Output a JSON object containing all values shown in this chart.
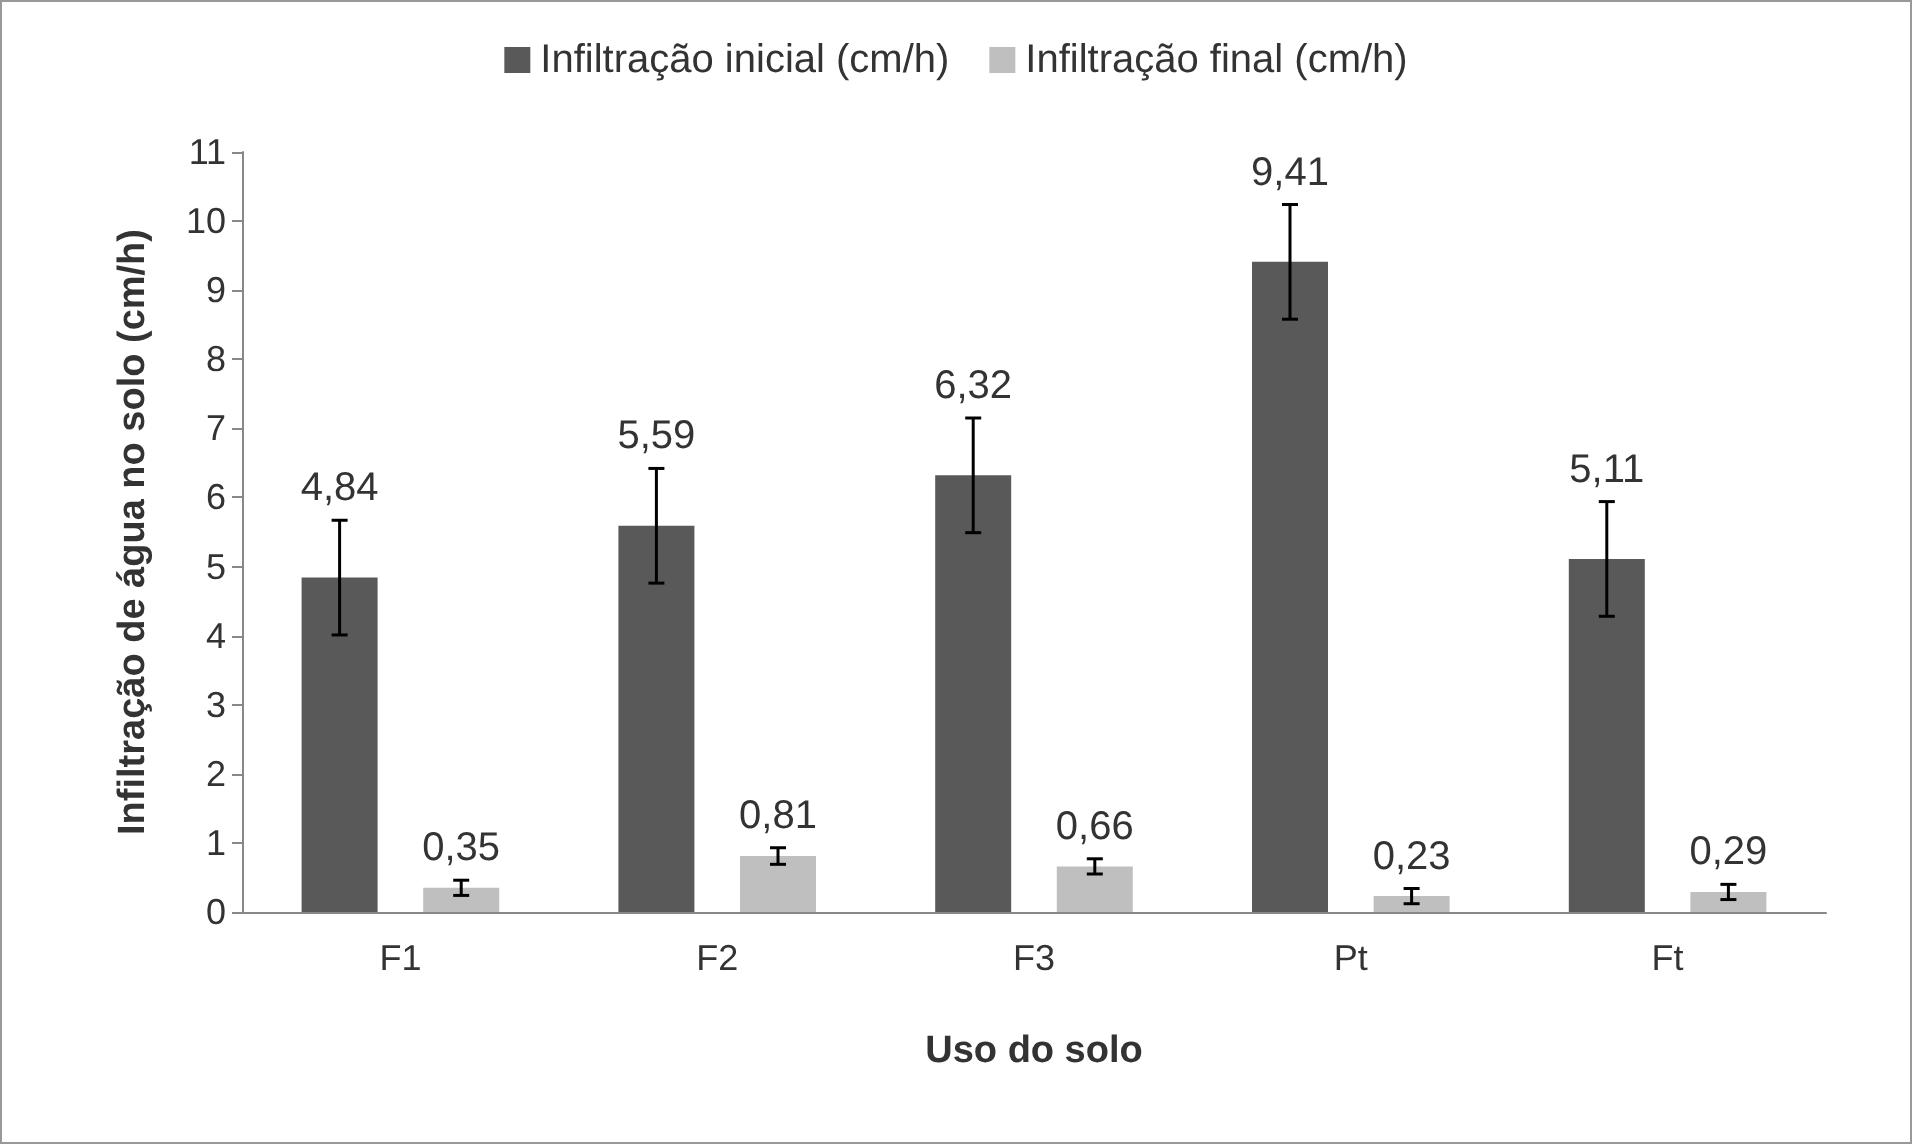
{
  "chart_data": {
    "type": "bar",
    "xlabel": "Uso do solo",
    "ylabel": "Infiltração de água no solo (cm/h)",
    "categories": [
      "F1",
      "F2",
      "F3",
      "Pt",
      "Ft"
    ],
    "series": [
      {
        "name": "Infiltração inicial (cm/h)",
        "color": "#595959",
        "values": [
          4.84,
          5.59,
          6.32,
          9.41,
          5.11
        ],
        "errors": [
          0.83,
          0.83,
          0.83,
          0.83,
          0.83
        ],
        "value_labels": [
          "4,84",
          "5,59",
          "6,32",
          "9,41",
          "5,11"
        ]
      },
      {
        "name": "Infiltração final (cm/h)",
        "color": "#bfbfbf",
        "values": [
          0.35,
          0.81,
          0.66,
          0.23,
          0.29
        ],
        "errors": [
          0.11,
          0.12,
          0.11,
          0.11,
          0.11
        ],
        "value_labels": [
          "0,35",
          "0,81",
          "0,66",
          "0,23",
          "0,29"
        ]
      }
    ],
    "ylim": [
      0,
      11
    ],
    "yticks": [
      0,
      1,
      2,
      3,
      4,
      5,
      6,
      7,
      8,
      9,
      10,
      11
    ],
    "grid": false,
    "legend": "top"
  }
}
